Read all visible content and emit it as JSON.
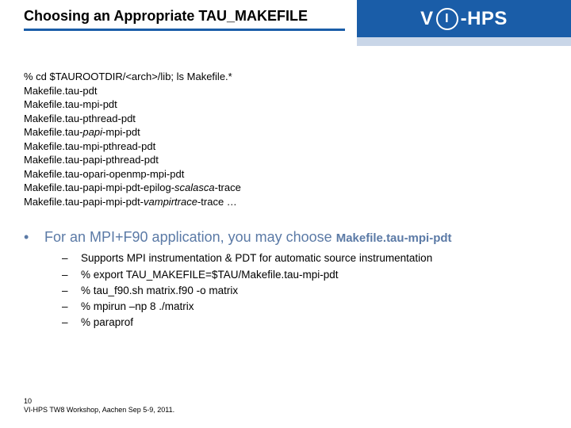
{
  "colors": {
    "brand_blue": "#1a5da8",
    "light_blue": "#c9d6e8",
    "bullet_text": "#5b7aa6",
    "background": "#ffffff"
  },
  "header": {
    "title": "Choosing an Appropriate TAU_MAKEFILE",
    "logo_prefix": "V",
    "logo_circle": "I",
    "logo_suffix": "-HPS"
  },
  "code": {
    "l0": "% cd $TAUROOTDIR/<arch>/lib; ls Makefile.*",
    "l1": "Makefile.tau-pdt",
    "l2": "Makefile.tau-mpi-pdt",
    "l3": "Makefile.tau-pthread-pdt",
    "l4a": "Makefile.tau-",
    "l4b": "papi",
    "l4c": "-mpi-pdt",
    "l5": "Makefile.tau-mpi-pthread-pdt",
    "l6": "Makefile.tau-papi-pthread-pdt",
    "l7": "Makefile.tau-opari-openmp-mpi-pdt",
    "l8a": "Makefile.tau-papi-mpi-pdt-epilog-",
    "l8b": "scalasca",
    "l8c": "-trace",
    "l9a": "Makefile.tau-papi-mpi-pdt-",
    "l9b": "vampirtrace",
    "l9c": "-trace …"
  },
  "bullet": {
    "main_a": "For an MPI+F90 application, you may choose ",
    "main_code": "Makefile.tau-mpi-pdt",
    "sub": [
      "Supports MPI instrumentation & PDT for automatic source instrumentation",
      "% export TAU_MAKEFILE=$TAU/Makefile.tau-mpi-pdt",
      "% tau_f90.sh matrix.f90 -o matrix",
      "% mpirun –np 8 ./matrix",
      "% paraprof"
    ]
  },
  "footer": {
    "page": "10",
    "text": "VI-HPS TW8 Workshop, Aachen Sep 5-9, 2011."
  }
}
